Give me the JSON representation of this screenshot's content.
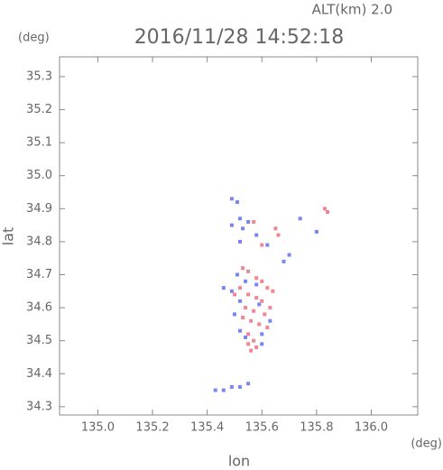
{
  "chart_data": {
    "type": "scatter",
    "title": "2016/11/28 14:52:18",
    "subtitle": "ALT(km) 2.0",
    "y_unit": "(deg)",
    "x_unit": "(deg)",
    "x_label": "lon",
    "y_label": "lat",
    "xlim": [
      134.86,
      136.17
    ],
    "ylim": [
      34.275,
      35.36
    ],
    "xticks": [
      {
        "value": 135.0,
        "label": "135.0"
      },
      135.2,
      135.4,
      135.6,
      135.8,
      {
        "value": 136.0,
        "label": "136.0"
      }
    ],
    "yticks": [
      34.3,
      34.4,
      34.5,
      34.6,
      34.7,
      34.8,
      34.9,
      {
        "value": 35.0,
        "label": "35.0"
      },
      35.1,
      35.2,
      35.3
    ],
    "series": [
      {
        "color": "#f07080",
        "x": [
          135.83,
          135.84,
          135.57,
          135.65,
          135.66,
          135.6,
          135.53,
          135.55,
          135.58,
          135.6,
          135.62,
          135.52,
          135.55,
          135.58,
          135.6,
          135.54,
          135.57,
          135.61,
          135.53,
          135.56,
          135.59,
          135.62,
          135.55,
          135.57,
          135.55,
          135.58,
          135.56,
          135.63,
          135.5,
          135.64
        ],
        "y": [
          34.9,
          34.89,
          34.86,
          34.84,
          34.82,
          34.79,
          34.72,
          34.71,
          34.69,
          34.68,
          34.66,
          34.66,
          34.64,
          34.63,
          34.62,
          34.6,
          34.59,
          34.58,
          34.57,
          34.56,
          34.55,
          34.54,
          34.52,
          34.5,
          34.49,
          34.48,
          34.47,
          34.6,
          34.64,
          34.65
        ]
      },
      {
        "color": "#6070f0",
        "x": [
          135.49,
          135.51,
          135.52,
          135.55,
          135.49,
          135.53,
          135.58,
          135.52,
          135.62,
          135.7,
          135.68,
          135.74,
          135.8,
          135.51,
          135.54,
          135.58,
          135.46,
          135.49,
          135.52,
          135.59,
          135.5,
          135.63,
          135.52,
          135.6,
          135.54,
          135.6,
          135.43,
          135.46,
          135.49,
          135.52,
          135.55
        ],
        "y": [
          34.93,
          34.92,
          34.87,
          34.86,
          34.85,
          34.84,
          34.82,
          34.8,
          34.79,
          34.76,
          34.74,
          34.87,
          34.83,
          34.7,
          34.68,
          34.67,
          34.66,
          34.65,
          34.62,
          34.61,
          34.58,
          34.56,
          34.53,
          34.52,
          34.51,
          34.49,
          34.35,
          34.35,
          34.36,
          34.36,
          34.37
        ]
      }
    ]
  }
}
